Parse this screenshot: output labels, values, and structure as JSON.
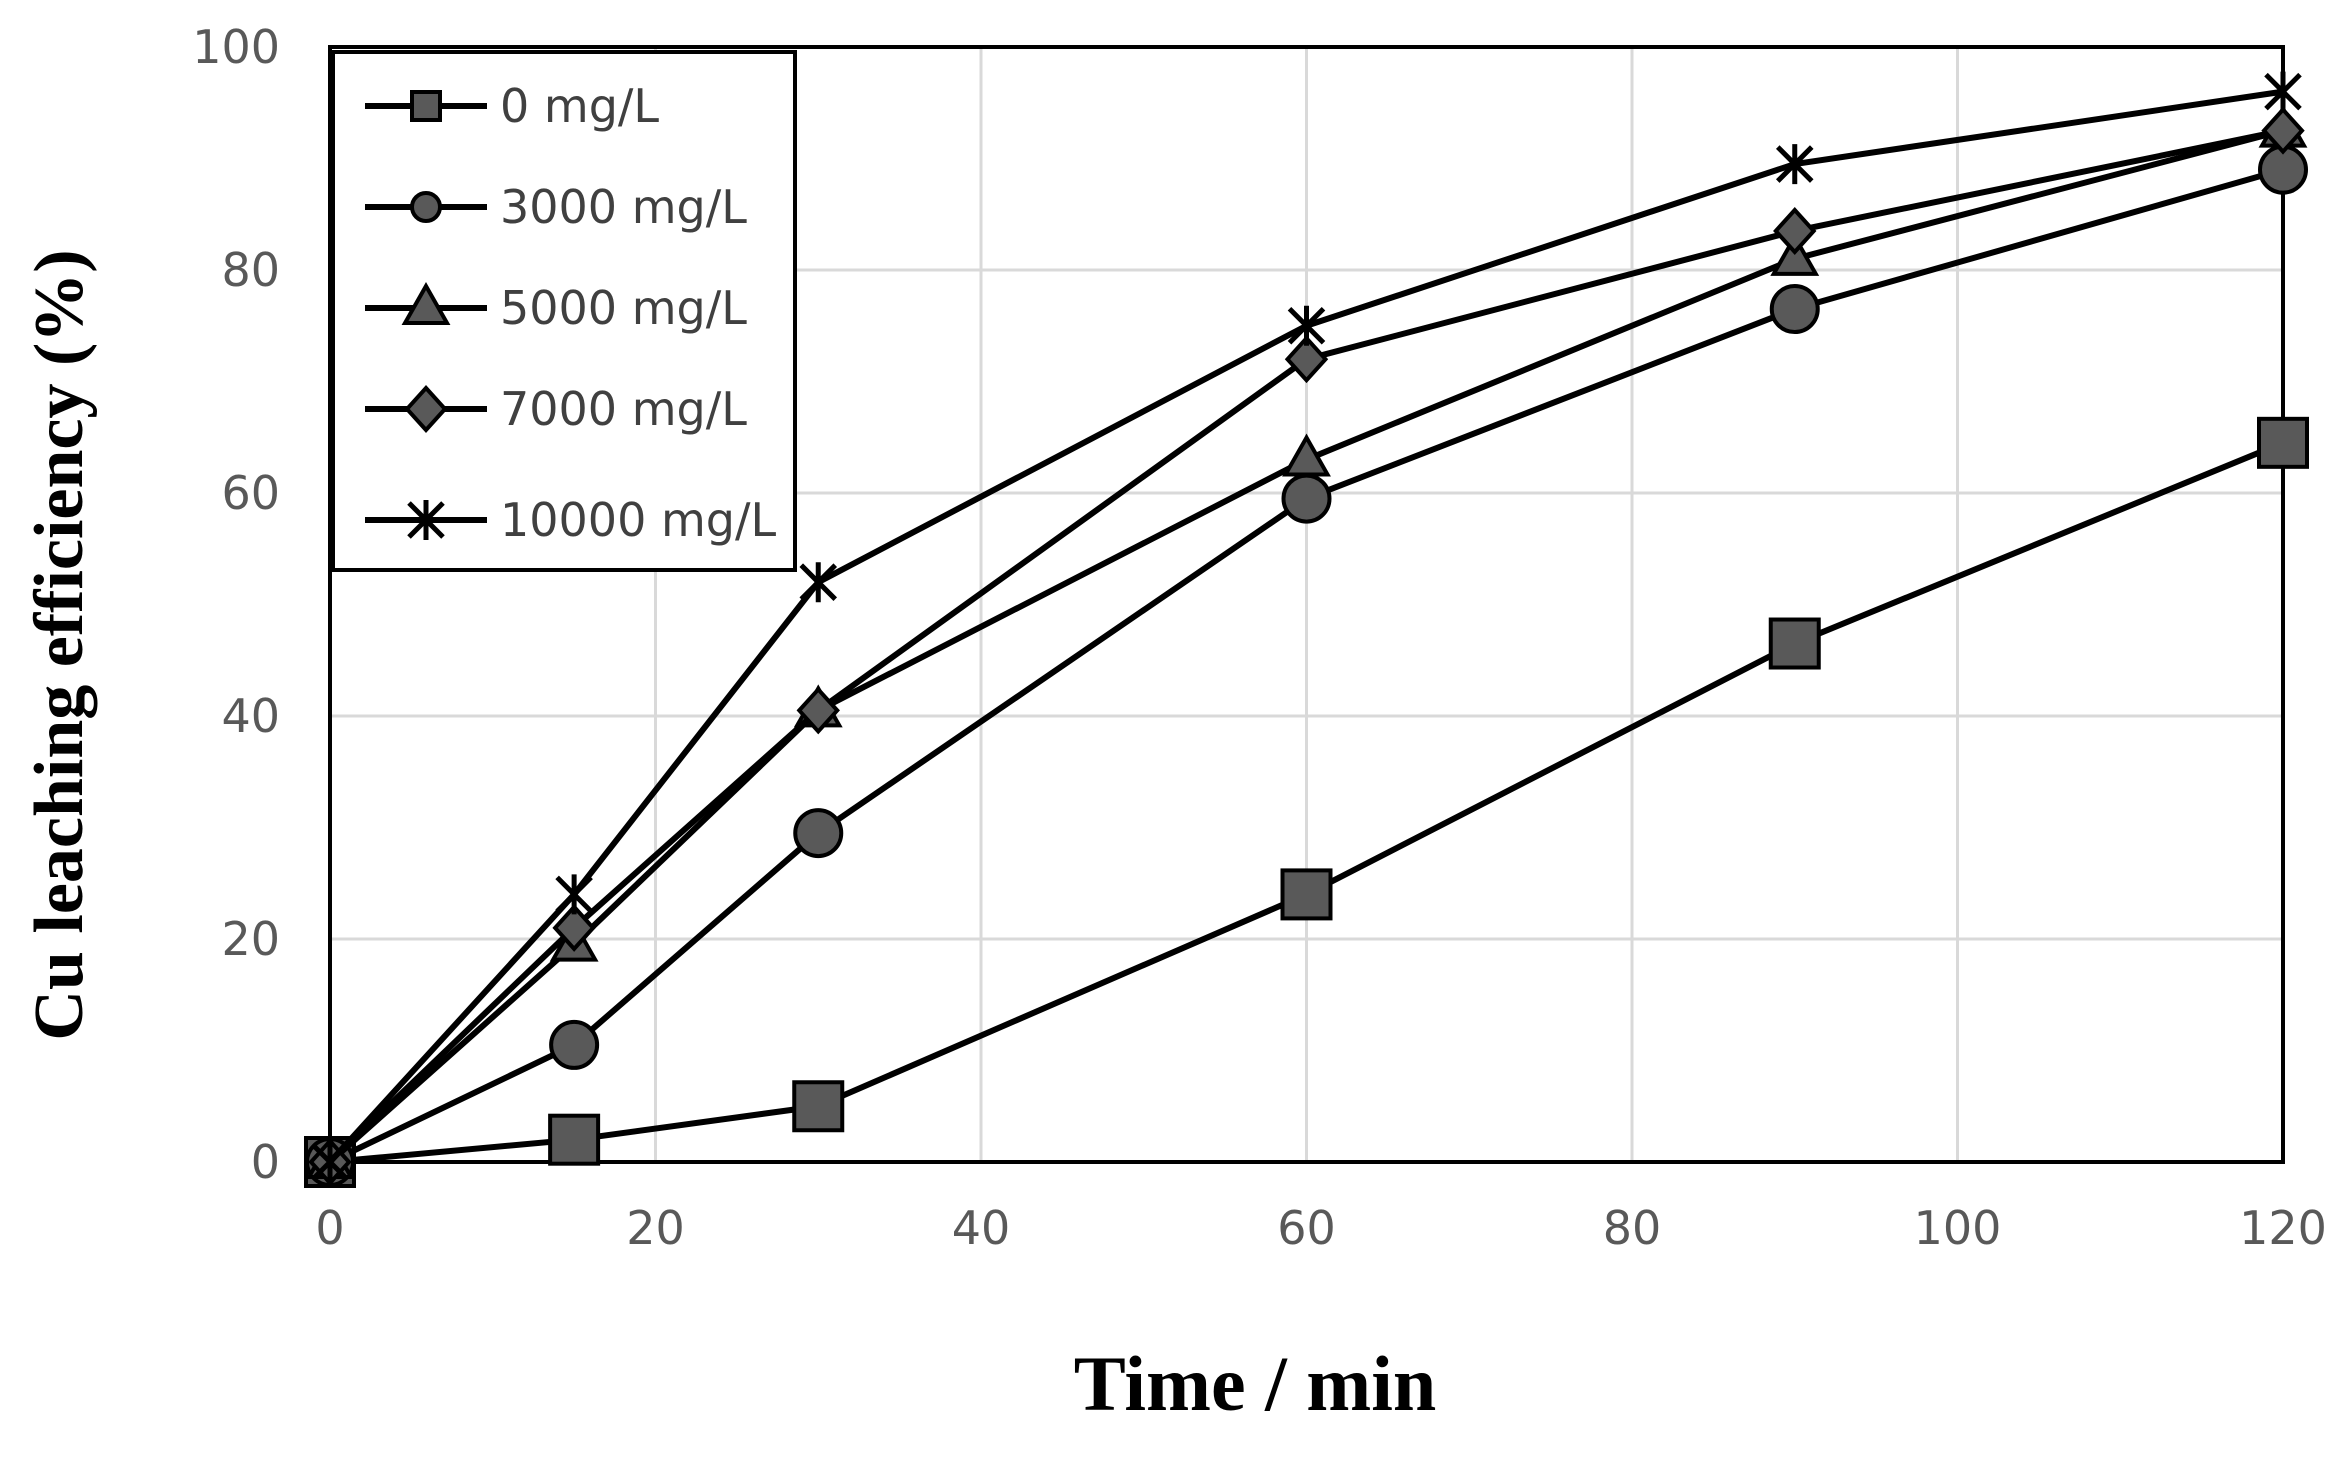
{
  "chart_data": {
    "type": "line",
    "title": "",
    "xlabel": "Time / min",
    "ylabel": "Cu leaching efficiency (%)",
    "xlim": [
      0,
      120
    ],
    "ylim": [
      0,
      100
    ],
    "xticks": [
      0,
      20,
      40,
      60,
      80,
      100,
      120
    ],
    "yticks": [
      0,
      20,
      40,
      60,
      80,
      100
    ],
    "grid": true,
    "legend_position": "top-left",
    "x": [
      0,
      15,
      30,
      60,
      90,
      120
    ],
    "series": [
      {
        "name": "0 mg/L",
        "marker": "square",
        "values": [
          0,
          2,
          5,
          24,
          46.5,
          64.5
        ]
      },
      {
        "name": "3000 mg/L",
        "marker": "circle",
        "values": [
          0,
          10.5,
          29.5,
          59.5,
          76.5,
          89
        ]
      },
      {
        "name": "5000 mg/L",
        "marker": "triangle",
        "values": [
          0,
          19.5,
          40.5,
          63,
          81,
          92.5
        ]
      },
      {
        "name": "7000 mg/L",
        "marker": "diamond",
        "values": [
          0,
          21,
          40.5,
          72,
          83.5,
          92.5
        ]
      },
      {
        "name": "10000 mg/L",
        "marker": "star",
        "values": [
          0,
          24,
          52,
          75,
          89.5,
          96
        ]
      }
    ]
  }
}
